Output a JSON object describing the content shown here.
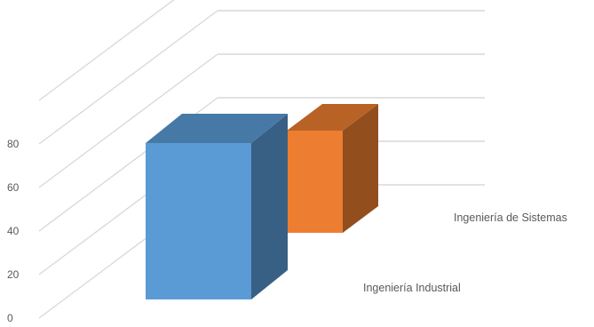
{
  "chart_data": {
    "type": "bar",
    "three_d": true,
    "categories": [
      "Ingeniería Industrial",
      "Ingeniería de Sistemas"
    ],
    "values": [
      76,
      48
    ],
    "colors": [
      "#5b9bd5",
      "#ed7d31"
    ],
    "ylim": [
      0,
      80
    ],
    "tick_labels": [
      "0",
      "20",
      "40",
      "60",
      "80"
    ],
    "ticks": [
      0,
      20,
      40,
      60,
      80
    ],
    "grid": true,
    "legend": "none",
    "title": "",
    "xlabel": "",
    "ylabel": ""
  }
}
